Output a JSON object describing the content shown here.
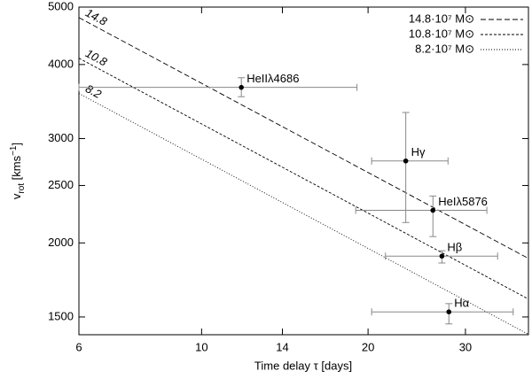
{
  "chart_data": {
    "type": "scatter",
    "xlabel": "Time delay τ [days]",
    "ylabel": [
      "v",
      "rot",
      " [kms",
      "−1",
      "]"
    ],
    "xlog": true,
    "ylog": true,
    "xlim": [
      6,
      39
    ],
    "ylim": [
      1400,
      5000
    ],
    "xticks": [
      6,
      10,
      14,
      20,
      30
    ],
    "yticks": [
      1500,
      2000,
      2500,
      3000,
      4000,
      5000
    ],
    "legend": "upper right",
    "lines": [
      {
        "name": "14.8·10⁷ M⊙",
        "label": "14.8",
        "style": "dashed",
        "color": "#000000",
        "x": [
          6,
          39
        ],
        "values": [
          4800,
          1883
        ]
      },
      {
        "name": "10.8·10⁷ M⊙",
        "label": "10.8",
        "style": "shortdash",
        "color": "#000000",
        "x": [
          6,
          39
        ],
        "values": [
          4100,
          1608
        ]
      },
      {
        "name": "8.2·10⁷ M⊙",
        "label": "8.2",
        "style": "dotted",
        "color": "#000000",
        "x": [
          6,
          39
        ],
        "values": [
          3575,
          1402
        ]
      }
    ],
    "points": [
      {
        "label": "HeIIλ4686",
        "x": 11.8,
        "y": 3660,
        "x_low": 6,
        "x_high": 19.1,
        "y_low": 3530,
        "y_high": 3800
      },
      {
        "label": "Hγ",
        "x": 23.4,
        "y": 2750,
        "x_low": 20.3,
        "x_high": 27.9,
        "y_low": 2165,
        "y_high": 3320
      },
      {
        "label": "HeIλ5876",
        "x": 26.2,
        "y": 2270,
        "x_low": 19.0,
        "x_high": 32.8,
        "y_low": 2050,
        "y_high": 2400
      },
      {
        "label": "Hβ",
        "x": 27.2,
        "y": 1900,
        "x_low": 21.5,
        "x_high": 34.3,
        "y_low": 1850,
        "y_high": 1940
      },
      {
        "label": "Hα",
        "x": 28.0,
        "y": 1530,
        "x_low": 20.3,
        "x_high": 36.6,
        "y_low": 1460,
        "y_high": 1580
      }
    ],
    "errorbar_color": "#888888",
    "point_color": "#000000"
  }
}
